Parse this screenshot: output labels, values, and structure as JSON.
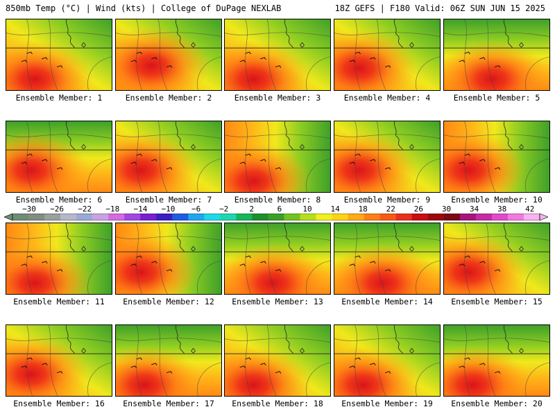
{
  "header": {
    "left_title": "850mb Temp (°C) | Wind (kts) | College of DuPage NEXLAB",
    "right_title": "18Z GEFS | F180 Valid: 06Z SUN JUN 15 2025"
  },
  "members": [
    {
      "label": "Ensemble Member: 1",
      "hot_center": "low-left",
      "north_green": "top-right"
    },
    {
      "label": "Ensemble Member: 2",
      "hot_center": "center-left",
      "north_green": "top-right"
    },
    {
      "label": "Ensemble Member: 3",
      "hot_center": "low-left",
      "north_green": "top-right"
    },
    {
      "label": "Ensemble Member: 4",
      "hot_center": "mid-left",
      "north_green": "top-right"
    },
    {
      "label": "Ensemble Member: 5",
      "hot_center": "low-center",
      "north_green": "top"
    },
    {
      "label": "Ensemble Member: 6",
      "hot_center": "mid-left",
      "north_green": "top"
    },
    {
      "label": "Ensemble Member: 7",
      "hot_center": "mid-left",
      "north_green": "top-right"
    },
    {
      "label": "Ensemble Member: 8",
      "hot_center": "low-left",
      "north_green": "right"
    },
    {
      "label": "Ensemble Member: 9",
      "hot_center": "mid-left",
      "north_green": "top-right"
    },
    {
      "label": "Ensemble Member: 10",
      "hot_center": "mid-left",
      "north_green": "right"
    },
    {
      "label": "Ensemble Member: 11",
      "hot_center": "low-left",
      "north_green": "right"
    },
    {
      "label": "Ensemble Member: 12",
      "hot_center": "mid-left",
      "north_green": "right"
    },
    {
      "label": "Ensemble Member: 13",
      "hot_center": "low-center",
      "north_green": "top"
    },
    {
      "label": "Ensemble Member: 14",
      "hot_center": "low-center",
      "north_green": "top"
    },
    {
      "label": "Ensemble Member: 15",
      "hot_center": "mid-left",
      "north_green": "top-right"
    },
    {
      "label": "Ensemble Member: 16",
      "hot_center": "mid-left",
      "north_green": "top-right"
    },
    {
      "label": "Ensemble Member: 17",
      "hot_center": "low-left",
      "north_green": "top"
    },
    {
      "label": "Ensemble Member: 18",
      "hot_center": "low-left",
      "north_green": "top-right"
    },
    {
      "label": "Ensemble Member: 19",
      "hot_center": "low-left",
      "north_green": "top-right"
    },
    {
      "label": "Ensemble Member: 20",
      "hot_center": "low-left",
      "north_green": "top"
    }
  ],
  "colorbar": {
    "labels": [
      "−30",
      "−26",
      "−22",
      "−18",
      "−14",
      "−10",
      "−6",
      "−2",
      "2",
      "6",
      "10",
      "14",
      "18",
      "22",
      "26",
      "30",
      "34",
      "38",
      "42"
    ],
    "colors": [
      "#6f8c74",
      "#838c83",
      "#9aa09c",
      "#b4b8c9",
      "#9aa9d6",
      "#c9a2e0",
      "#d46be0",
      "#a447e0",
      "#7a1fd1",
      "#3c1fc4",
      "#1f5ce0",
      "#1fa8ef",
      "#1fd8e6",
      "#1fd6b0",
      "#16b65a",
      "#1f8f2e",
      "#3aa02a",
      "#74c21f",
      "#b6de1f",
      "#f0f01f",
      "#ffd21a",
      "#ffaa16",
      "#ff7f14",
      "#f65a14",
      "#e8301a",
      "#c80f14",
      "#9a0a0f",
      "#7a0a14",
      "#a8147a",
      "#c82aa4",
      "#e04ac8",
      "#f07ae0",
      "#f8b2f0"
    ]
  }
}
